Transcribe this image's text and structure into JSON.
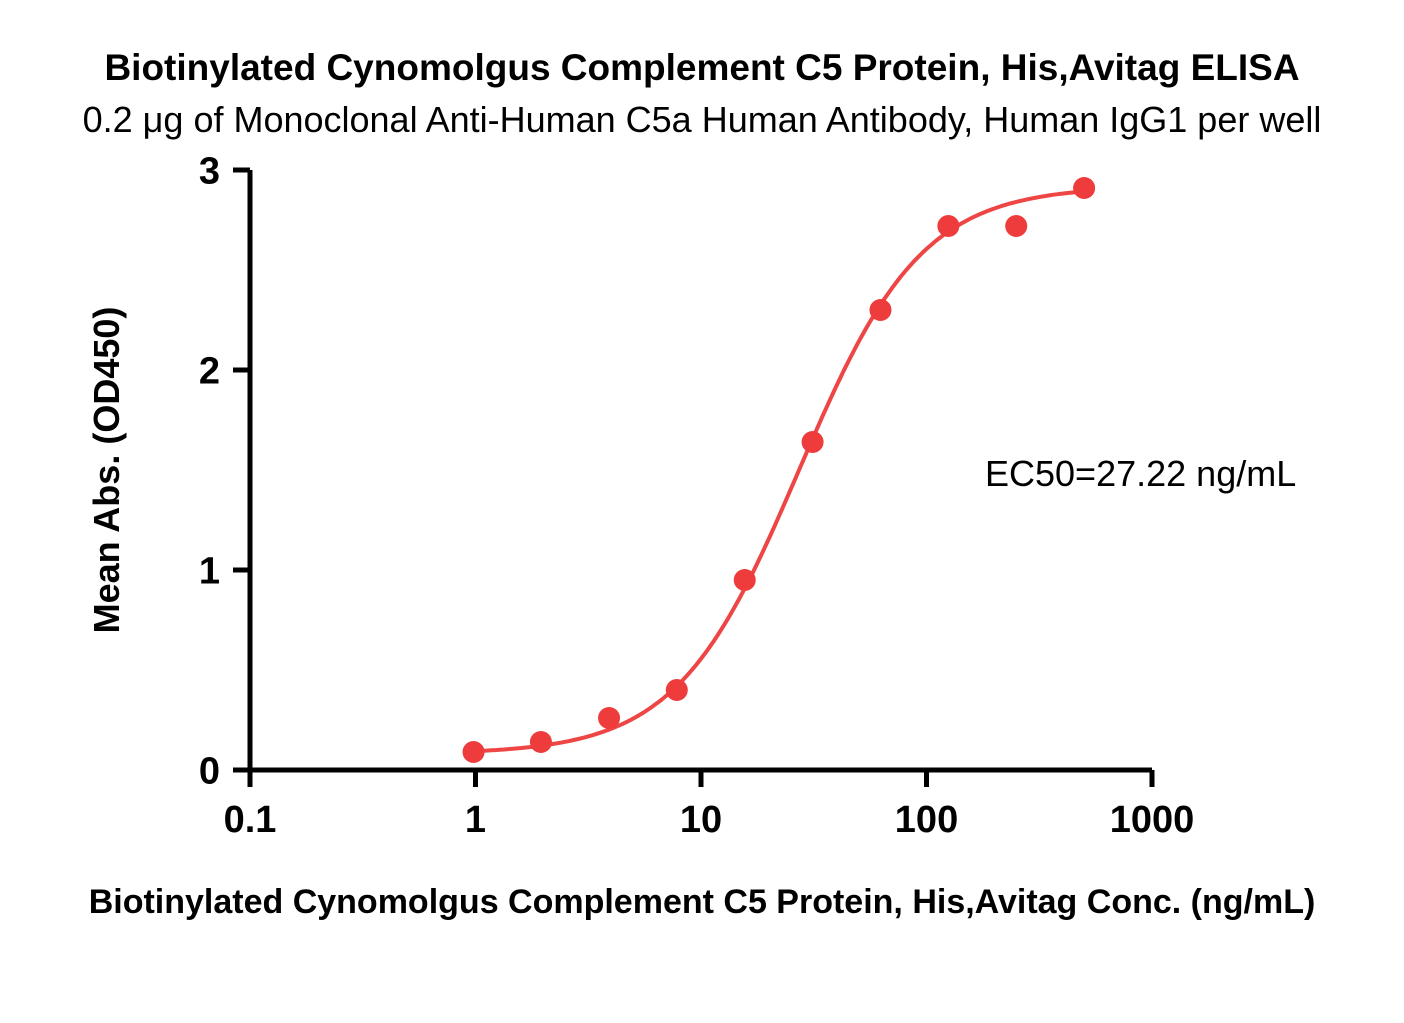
{
  "chart_data": {
    "type": "scatter",
    "title": "Biotinylated Cynomolgus Complement C5 Protein, His,Avitag ELISA",
    "subtitle": "0.2 μg of Monoclonal Anti-Human C5a Human Antibody, Human IgG1 per well",
    "xlabel": "Biotinylated Cynomolgus Complement C5 Protein, His,Avitag Conc. (ng/mL)",
    "ylabel": "Mean Abs. (OD450)",
    "x_scale": "log10",
    "xlim": [
      0.1,
      1000
    ],
    "ylim": [
      0,
      3
    ],
    "x_ticks": [
      0.1,
      1,
      10,
      100,
      1000
    ],
    "x_tick_labels": [
      "0.1",
      "1",
      "10",
      "100",
      "1000"
    ],
    "y_ticks": [
      0,
      1,
      2,
      3
    ],
    "y_tick_labels": [
      "0",
      "1",
      "2",
      "3"
    ],
    "grid": false,
    "legend": "none",
    "series": [
      {
        "x": [
          0.98,
          1.95,
          3.91,
          7.81,
          15.63,
          31.25,
          62.5,
          125,
          250,
          500
        ],
        "y": [
          0.09,
          0.14,
          0.26,
          0.4,
          0.95,
          1.64,
          2.3,
          2.72,
          2.72,
          2.91
        ]
      }
    ],
    "fit_curve": {
      "model": "4PL",
      "bottom": 0.08,
      "top": 2.92,
      "ec50": 27.22,
      "hill": 1.6,
      "x_range": [
        0.98,
        500
      ]
    },
    "annotation": {
      "text": "EC50=27.22 ng/mL"
    },
    "colors": {
      "points": "#ee3b3b",
      "curve": "#ee4545",
      "axis": "#000000"
    }
  }
}
